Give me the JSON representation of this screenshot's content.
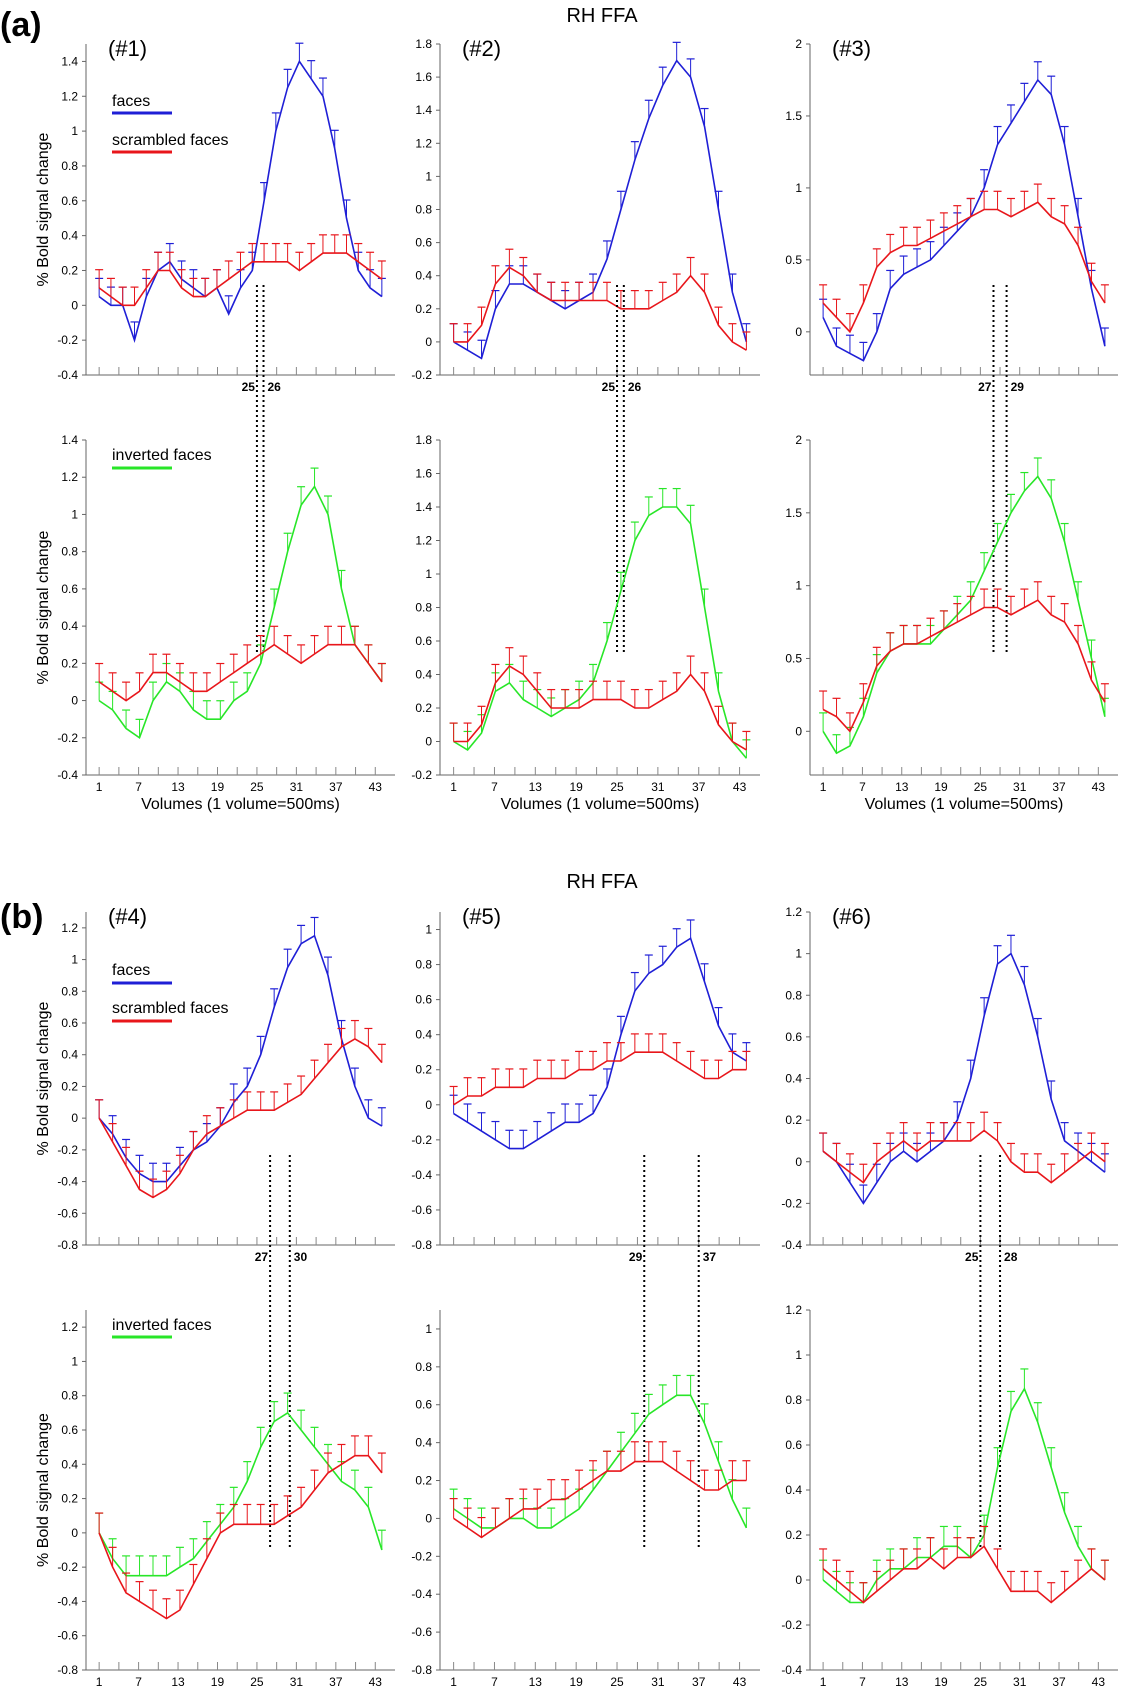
{
  "figure": {
    "sections": [
      {
        "label": "(a)",
        "title": "RH FFA"
      },
      {
        "label": "(b)",
        "title": "RH FFA"
      }
    ],
    "y_axis_label": "% Bold signal change",
    "x_axis_label": "Volumes (1 volume=500ms)",
    "legend": {
      "faces": "faces",
      "scrambled": "scrambled faces",
      "inverted": "inverted faces"
    },
    "colors": {
      "faces": "#1f1fd6",
      "scrambled": "#e8161b",
      "inverted": "#28e628"
    }
  },
  "chart_data": [
    {
      "panel": "(#1)",
      "row": "upright",
      "type": "line",
      "ylim": [
        -0.4,
        1.5
      ],
      "yticks": [
        "-0.4",
        "-0.2",
        "0",
        "0.2",
        "0.4",
        "0.6",
        "0.8",
        "1",
        "1.2",
        "1.4"
      ],
      "markers": [
        "25",
        "26"
      ],
      "series": [
        {
          "name": "faces",
          "color": "faces",
          "values": [
            0.05,
            0.0,
            0.0,
            -0.2,
            0.05,
            0.2,
            0.25,
            0.15,
            0.1,
            0.05,
            0.1,
            -0.05,
            0.1,
            0.2,
            0.6,
            1.0,
            1.25,
            1.4,
            1.3,
            1.2,
            0.9,
            0.5,
            0.2,
            0.1,
            0.05
          ]
        },
        {
          "name": "scrambled faces",
          "color": "scrambled",
          "values": [
            0.1,
            0.05,
            0.0,
            0.0,
            0.1,
            0.2,
            0.2,
            0.1,
            0.05,
            0.05,
            0.1,
            0.15,
            0.2,
            0.25,
            0.25,
            0.25,
            0.25,
            0.2,
            0.25,
            0.3,
            0.3,
            0.3,
            0.25,
            0.2,
            0.15
          ]
        }
      ]
    },
    {
      "panel": "(#2)",
      "row": "upright",
      "type": "line",
      "ylim": [
        -0.2,
        1.8
      ],
      "yticks": [
        "-0.2",
        "0",
        "0.2",
        "0.4",
        "0.6",
        "0.8",
        "1",
        "1.2",
        "1.4",
        "1.6",
        "1.8"
      ],
      "markers": [
        "25",
        "26"
      ],
      "series": [
        {
          "name": "faces",
          "color": "faces",
          "values": [
            0.0,
            -0.05,
            -0.1,
            0.2,
            0.35,
            0.35,
            0.3,
            0.25,
            0.2,
            0.25,
            0.3,
            0.5,
            0.8,
            1.1,
            1.35,
            1.55,
            1.7,
            1.6,
            1.3,
            0.8,
            0.3,
            0.0
          ]
        },
        {
          "name": "scrambled faces",
          "color": "scrambled",
          "values": [
            0.0,
            0.0,
            0.1,
            0.35,
            0.45,
            0.4,
            0.3,
            0.25,
            0.25,
            0.25,
            0.25,
            0.25,
            0.2,
            0.2,
            0.2,
            0.25,
            0.3,
            0.4,
            0.3,
            0.1,
            0.0,
            -0.05
          ]
        }
      ]
    },
    {
      "panel": "(#3)",
      "row": "upright",
      "type": "line",
      "ylim": [
        -0.3,
        2.0
      ],
      "yticks": [
        "0",
        "0.5",
        "1",
        "1.5",
        "2"
      ],
      "markers": [
        "27",
        "29"
      ],
      "series": [
        {
          "name": "faces",
          "color": "faces",
          "values": [
            0.1,
            -0.1,
            -0.15,
            -0.2,
            0.0,
            0.3,
            0.4,
            0.45,
            0.5,
            0.6,
            0.7,
            0.8,
            1.0,
            1.3,
            1.45,
            1.6,
            1.75,
            1.65,
            1.3,
            0.8,
            0.3,
            -0.1
          ]
        },
        {
          "name": "scrambled faces",
          "color": "scrambled",
          "values": [
            0.2,
            0.1,
            0.0,
            0.2,
            0.45,
            0.55,
            0.6,
            0.6,
            0.65,
            0.7,
            0.75,
            0.8,
            0.85,
            0.85,
            0.8,
            0.85,
            0.9,
            0.8,
            0.75,
            0.6,
            0.35,
            0.2
          ]
        }
      ]
    },
    {
      "panel": "(#1)",
      "row": "inverted",
      "type": "line",
      "ylim": [
        -0.4,
        1.4
      ],
      "yticks": [
        "-0.4",
        "-0.2",
        "0",
        "0.2",
        "0.4",
        "0.6",
        "0.8",
        "1",
        "1.2",
        "1.4"
      ],
      "xticks": [
        "1",
        "7",
        "13",
        "19",
        "25",
        "31",
        "37",
        "43"
      ],
      "series": [
        {
          "name": "inverted faces",
          "color": "inverted",
          "values": [
            0.0,
            -0.05,
            -0.15,
            -0.2,
            0.0,
            0.1,
            0.05,
            -0.05,
            -0.1,
            -0.1,
            0.0,
            0.05,
            0.2,
            0.5,
            0.8,
            1.05,
            1.15,
            1.0,
            0.6,
            0.3,
            0.2,
            0.1
          ]
        },
        {
          "name": "scrambled faces",
          "color": "scrambled",
          "values": [
            0.1,
            0.05,
            0.0,
            0.05,
            0.15,
            0.15,
            0.1,
            0.05,
            0.05,
            0.1,
            0.15,
            0.2,
            0.25,
            0.3,
            0.25,
            0.2,
            0.25,
            0.3,
            0.3,
            0.3,
            0.2,
            0.1
          ]
        }
      ]
    },
    {
      "panel": "(#2)",
      "row": "inverted",
      "type": "line",
      "ylim": [
        -0.2,
        1.8
      ],
      "yticks": [
        "-0.2",
        "0",
        "0.2",
        "0.4",
        "0.6",
        "0.8",
        "1",
        "1.2",
        "1.4",
        "1.6",
        "1.8"
      ],
      "xticks": [
        "1",
        "7",
        "13",
        "19",
        "25",
        "31",
        "37",
        "43"
      ],
      "series": [
        {
          "name": "inverted faces",
          "color": "inverted",
          "values": [
            0.0,
            -0.05,
            0.05,
            0.3,
            0.35,
            0.25,
            0.2,
            0.15,
            0.2,
            0.25,
            0.35,
            0.6,
            0.9,
            1.2,
            1.35,
            1.4,
            1.4,
            1.3,
            0.8,
            0.3,
            0.0,
            -0.1
          ]
        },
        {
          "name": "scrambled faces",
          "color": "scrambled",
          "values": [
            0.0,
            0.0,
            0.1,
            0.35,
            0.45,
            0.4,
            0.3,
            0.2,
            0.2,
            0.2,
            0.25,
            0.25,
            0.25,
            0.2,
            0.2,
            0.25,
            0.3,
            0.4,
            0.3,
            0.1,
            0.0,
            -0.05
          ]
        }
      ]
    },
    {
      "panel": "(#3)",
      "row": "inverted",
      "type": "line",
      "ylim": [
        -0.3,
        2.0
      ],
      "yticks": [
        "0",
        "0.5",
        "1",
        "1.5",
        "2"
      ],
      "xticks": [
        "1",
        "7",
        "13",
        "19",
        "25",
        "31",
        "37",
        "43"
      ],
      "series": [
        {
          "name": "inverted faces",
          "color": "inverted",
          "values": [
            0.0,
            -0.15,
            -0.1,
            0.1,
            0.4,
            0.55,
            0.6,
            0.6,
            0.6,
            0.7,
            0.8,
            0.9,
            1.1,
            1.3,
            1.5,
            1.65,
            1.75,
            1.6,
            1.3,
            0.9,
            0.5,
            0.1
          ]
        },
        {
          "name": "scrambled faces",
          "color": "scrambled",
          "values": [
            0.15,
            0.1,
            0.0,
            0.2,
            0.45,
            0.55,
            0.6,
            0.6,
            0.65,
            0.7,
            0.75,
            0.8,
            0.85,
            0.85,
            0.8,
            0.85,
            0.9,
            0.8,
            0.75,
            0.6,
            0.35,
            0.2
          ]
        }
      ]
    },
    {
      "panel": "(#4)",
      "row": "upright",
      "type": "line",
      "ylim": [
        -0.8,
        1.3
      ],
      "yticks": [
        "-0.8",
        "-0.6",
        "-0.4",
        "-0.2",
        "0",
        "0.2",
        "0.4",
        "0.6",
        "0.8",
        "1",
        "1.2"
      ],
      "markers": [
        "27",
        "30"
      ],
      "series": [
        {
          "name": "faces",
          "color": "faces",
          "values": [
            0.0,
            -0.1,
            -0.25,
            -0.35,
            -0.4,
            -0.4,
            -0.3,
            -0.2,
            -0.15,
            -0.05,
            0.1,
            0.2,
            0.4,
            0.7,
            0.95,
            1.1,
            1.15,
            0.9,
            0.5,
            0.2,
            0.0,
            -0.05
          ]
        },
        {
          "name": "scrambled faces",
          "color": "scrambled",
          "values": [
            0.0,
            -0.15,
            -0.3,
            -0.45,
            -0.5,
            -0.45,
            -0.35,
            -0.2,
            -0.1,
            -0.05,
            0.0,
            0.05,
            0.05,
            0.05,
            0.1,
            0.15,
            0.25,
            0.35,
            0.45,
            0.5,
            0.45,
            0.35
          ]
        }
      ]
    },
    {
      "panel": "(#5)",
      "row": "upright",
      "type": "line",
      "ylim": [
        -0.8,
        1.1
      ],
      "yticks": [
        "-0.8",
        "-0.6",
        "-0.4",
        "-0.2",
        "0",
        "0.2",
        "0.4",
        "0.6",
        "0.8",
        "1"
      ],
      "markers": [
        "29",
        "37"
      ],
      "series": [
        {
          "name": "faces",
          "color": "faces",
          "values": [
            -0.05,
            -0.1,
            -0.15,
            -0.2,
            -0.25,
            -0.25,
            -0.2,
            -0.15,
            -0.1,
            -0.1,
            -0.05,
            0.1,
            0.4,
            0.65,
            0.75,
            0.8,
            0.9,
            0.95,
            0.7,
            0.45,
            0.3,
            0.25
          ]
        },
        {
          "name": "scrambled faces",
          "color": "scrambled",
          "values": [
            0.0,
            0.05,
            0.05,
            0.1,
            0.1,
            0.1,
            0.15,
            0.15,
            0.15,
            0.2,
            0.2,
            0.25,
            0.25,
            0.3,
            0.3,
            0.3,
            0.25,
            0.2,
            0.15,
            0.15,
            0.2,
            0.2
          ]
        }
      ]
    },
    {
      "panel": "(#6)",
      "row": "upright",
      "type": "line",
      "ylim": [
        -0.4,
        1.2
      ],
      "yticks": [
        "-0.4",
        "-0.2",
        "0",
        "0.2",
        "0.4",
        "0.6",
        "0.8",
        "1",
        "1.2"
      ],
      "markers": [
        "25",
        "28"
      ],
      "series": [
        {
          "name": "faces",
          "color": "faces",
          "values": [
            0.05,
            0.0,
            -0.1,
            -0.2,
            -0.1,
            0.0,
            0.05,
            0.0,
            0.05,
            0.1,
            0.2,
            0.4,
            0.7,
            0.95,
            1.0,
            0.85,
            0.6,
            0.3,
            0.1,
            0.05,
            0.0,
            -0.05
          ]
        },
        {
          "name": "scrambled faces",
          "color": "scrambled",
          "values": [
            0.05,
            0.0,
            -0.05,
            -0.1,
            0.0,
            0.05,
            0.1,
            0.05,
            0.1,
            0.1,
            0.1,
            0.1,
            0.15,
            0.1,
            0.0,
            -0.05,
            -0.05,
            -0.1,
            -0.05,
            0.0,
            0.05,
            0.0
          ]
        }
      ]
    },
    {
      "panel": "(#4)",
      "row": "inverted",
      "type": "line",
      "ylim": [
        -0.8,
        1.3
      ],
      "yticks": [
        "-0.8",
        "-0.6",
        "-0.4",
        "-0.2",
        "0",
        "0.2",
        "0.4",
        "0.6",
        "0.8",
        "1",
        "1.2"
      ],
      "xticks": [
        "1",
        "7",
        "13",
        "19",
        "25",
        "31",
        "37",
        "43"
      ],
      "series": [
        {
          "name": "inverted faces",
          "color": "inverted",
          "values": [
            0.0,
            -0.15,
            -0.25,
            -0.25,
            -0.25,
            -0.25,
            -0.2,
            -0.15,
            -0.05,
            0.05,
            0.15,
            0.3,
            0.5,
            0.65,
            0.7,
            0.6,
            0.5,
            0.4,
            0.3,
            0.25,
            0.15,
            -0.1
          ]
        },
        {
          "name": "scrambled faces",
          "color": "scrambled",
          "values": [
            0.0,
            -0.2,
            -0.35,
            -0.4,
            -0.45,
            -0.5,
            -0.45,
            -0.3,
            -0.15,
            0.0,
            0.05,
            0.05,
            0.05,
            0.05,
            0.1,
            0.15,
            0.25,
            0.35,
            0.4,
            0.45,
            0.45,
            0.35
          ]
        }
      ]
    },
    {
      "panel": "(#5)",
      "row": "inverted",
      "type": "line",
      "ylim": [
        -0.8,
        1.1
      ],
      "yticks": [
        "-0.8",
        "-0.6",
        "-0.4",
        "-0.2",
        "0",
        "0.2",
        "0.4",
        "0.6",
        "0.8",
        "1"
      ],
      "xticks": [
        "1",
        "7",
        "13",
        "19",
        "25",
        "31",
        "37",
        "43"
      ],
      "series": [
        {
          "name": "inverted faces",
          "color": "inverted",
          "values": [
            0.05,
            0.0,
            -0.05,
            -0.05,
            0.0,
            0.0,
            -0.05,
            -0.05,
            0.0,
            0.05,
            0.15,
            0.25,
            0.35,
            0.45,
            0.55,
            0.6,
            0.65,
            0.65,
            0.5,
            0.3,
            0.1,
            -0.05
          ]
        },
        {
          "name": "scrambled faces",
          "color": "scrambled",
          "values": [
            0.0,
            -0.05,
            -0.1,
            -0.05,
            0.0,
            0.05,
            0.05,
            0.1,
            0.1,
            0.15,
            0.2,
            0.25,
            0.25,
            0.3,
            0.3,
            0.3,
            0.25,
            0.2,
            0.15,
            0.15,
            0.2,
            0.2
          ]
        }
      ]
    },
    {
      "panel": "(#6)",
      "row": "inverted",
      "type": "line",
      "ylim": [
        -0.4,
        1.2
      ],
      "yticks": [
        "-0.4",
        "-0.2",
        "0",
        "0.2",
        "0.4",
        "0.6",
        "0.8",
        "1",
        "1.2"
      ],
      "xticks": [
        "1",
        "7",
        "13",
        "19",
        "25",
        "31",
        "37",
        "43"
      ],
      "series": [
        {
          "name": "inverted faces",
          "color": "inverted",
          "values": [
            0.0,
            -0.05,
            -0.1,
            -0.1,
            0.0,
            0.05,
            0.05,
            0.1,
            0.1,
            0.15,
            0.15,
            0.1,
            0.2,
            0.5,
            0.75,
            0.85,
            0.7,
            0.5,
            0.3,
            0.15,
            0.05,
            0.0
          ]
        },
        {
          "name": "scrambled faces",
          "color": "scrambled",
          "values": [
            0.05,
            0.0,
            -0.05,
            -0.1,
            -0.05,
            0.0,
            0.05,
            0.05,
            0.1,
            0.05,
            0.1,
            0.1,
            0.15,
            0.05,
            -0.05,
            -0.05,
            -0.05,
            -0.1,
            -0.05,
            0.0,
            0.05,
            0.0
          ]
        }
      ]
    }
  ]
}
